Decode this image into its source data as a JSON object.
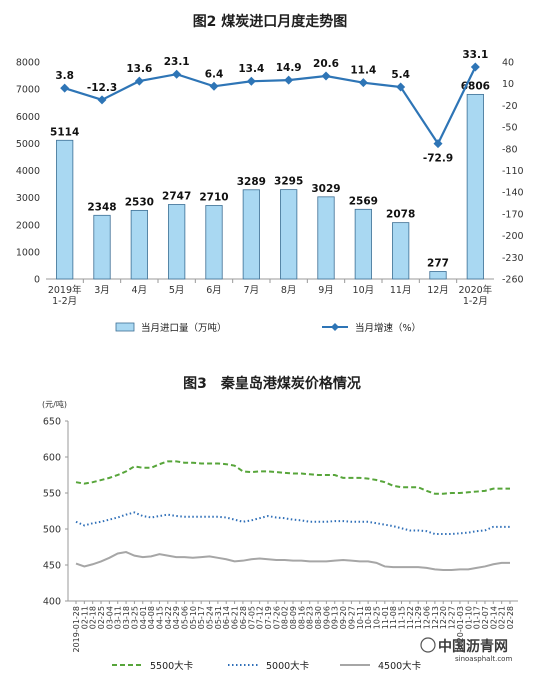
{
  "chart_data": [
    {
      "type": "bar",
      "title": "图2 煤炭进口月度走势图",
      "categories": [
        "2019年\n1-2月",
        "3月",
        "4月",
        "5月",
        "6月",
        "7月",
        "8月",
        "9月",
        "10月",
        "11月",
        "12月",
        "2020年\n1-2月"
      ],
      "series": [
        {
          "name": "当月进口量（万吨）",
          "type": "bar",
          "axis": "left",
          "values": [
            5114,
            2348,
            2530,
            2747,
            2710,
            3289,
            3295,
            3029,
            2569,
            2078,
            277,
            6806
          ]
        },
        {
          "name": "当月增速（%）",
          "type": "line",
          "axis": "right",
          "values": [
            3.8,
            -12.3,
            13.6,
            23.1,
            6.4,
            13.4,
            14.9,
            20.6,
            11.4,
            5.4,
            -72.9,
            33.1
          ]
        }
      ],
      "ylim_left": [
        0,
        8000
      ],
      "yticks_left": [
        0,
        1000,
        2000,
        3000,
        4000,
        5000,
        6000,
        7000,
        8000
      ],
      "ylim_right": [
        -260,
        40
      ],
      "yticks_right": [
        40,
        10,
        -20,
        -50,
        -80,
        -110,
        -140,
        -170,
        -200,
        -230,
        -260
      ],
      "legend_position": "bottom",
      "colors": {
        "bar_fill": "#a9d8f2",
        "bar_stroke": "#3d6f94",
        "line": "#2e75b6"
      }
    },
    {
      "type": "line",
      "title": "图3　秦皇岛港煤炭价格情况",
      "ylabel": "(元/吨)",
      "ylim": [
        400,
        650
      ],
      "yticks": [
        400,
        450,
        500,
        550,
        600,
        650
      ],
      "x": [
        "2019-01-28",
        "02-11",
        "02-18",
        "02-25",
        "03-04",
        "03-11",
        "03-18",
        "03-25",
        "04-01",
        "04-08",
        "04-15",
        "04-22",
        "04-29",
        "05-06",
        "05-10",
        "05-17",
        "05-24",
        "05-31",
        "06-14",
        "06-21",
        "06-28",
        "07-05",
        "07-12",
        "07-19",
        "07-26",
        "08-02",
        "08-09",
        "08-16",
        "08-23",
        "08-30",
        "09-06",
        "09-13",
        "09-20",
        "09-27",
        "10-11",
        "10-18",
        "10-25",
        "11-01",
        "11-08",
        "11-15",
        "11-22",
        "11-29",
        "12-06",
        "12-13",
        "12-20",
        "12-27",
        "2020-01-03",
        "01-10",
        "01-17",
        "02-07",
        "02-14",
        "02-21",
        "02-28"
      ],
      "series": [
        {
          "name": "5500大卡",
          "style": "dashed",
          "color": "#57a53a",
          "values": [
            565,
            563,
            565,
            568,
            571,
            575,
            580,
            587,
            585,
            585,
            590,
            594,
            594,
            592,
            592,
            591,
            591,
            591,
            590,
            588,
            580,
            579,
            580,
            580,
            579,
            578,
            577,
            577,
            576,
            575,
            575,
            575,
            571,
            571,
            571,
            570,
            568,
            565,
            560,
            558,
            558,
            558,
            553,
            549,
            549,
            550,
            550,
            551,
            552,
            553,
            556,
            556,
            556
          ]
        },
        {
          "name": "5000大卡",
          "style": "dotted",
          "color": "#2f6fb8",
          "values": [
            510,
            505,
            508,
            510,
            513,
            516,
            520,
            523,
            518,
            516,
            518,
            520,
            518,
            517,
            517,
            517,
            517,
            517,
            516,
            513,
            510,
            512,
            515,
            518,
            516,
            515,
            513,
            512,
            510,
            510,
            510,
            511,
            511,
            510,
            510,
            510,
            508,
            506,
            504,
            501,
            498,
            498,
            497,
            493,
            493,
            493,
            494,
            495,
            497,
            498,
            503,
            503,
            503
          ]
        },
        {
          "name": "4500大卡",
          "style": "solid",
          "color": "#a6a6a6",
          "values": [
            452,
            448,
            451,
            455,
            460,
            466,
            468,
            463,
            461,
            462,
            465,
            463,
            461,
            461,
            460,
            461,
            462,
            460,
            458,
            455,
            456,
            458,
            459,
            458,
            457,
            457,
            456,
            456,
            455,
            455,
            455,
            456,
            457,
            456,
            455,
            455,
            453,
            448,
            447,
            447,
            447,
            447,
            446,
            444,
            443,
            443,
            444,
            444,
            446,
            448,
            451,
            453,
            453
          ]
        }
      ],
      "legend_position": "bottom"
    }
  ],
  "watermark": {
    "text": "中国沥青网",
    "url": "sinoasphalt.com"
  }
}
